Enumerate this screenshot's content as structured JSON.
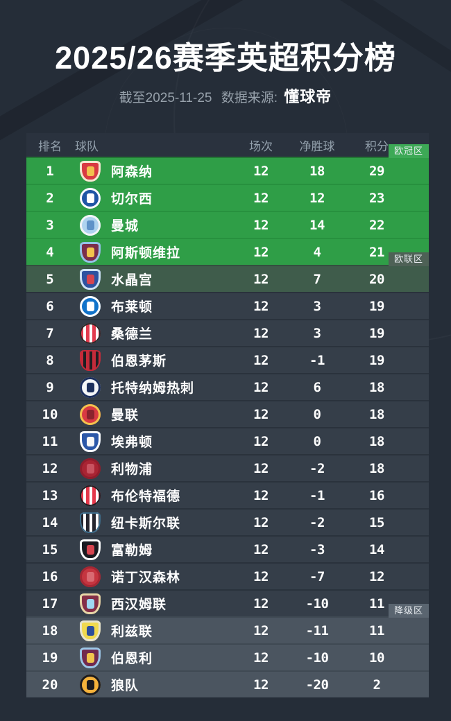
{
  "header": {
    "title": "2025/26赛季英超积分榜",
    "asof": "截至2025-11-25",
    "source_label": "数据来源:",
    "source": "懂球帝"
  },
  "colors": {
    "page_bg": "#252d38",
    "header_row_bg": "#2a323e",
    "header_text": "#93a0ac",
    "subtitle_text": "#97a1ab",
    "ucl_row": "#2f9e47",
    "ucl_separator": "#27913e",
    "uel_row": "#3f5c4b",
    "mid_row": "#353e49",
    "mid_separator": "#2a323c",
    "relegation_row": "#4b5560",
    "relegation_separator": "#3f4953",
    "text_white": "#ffffff"
  },
  "table": {
    "columns": {
      "rank": "排名",
      "team": "球队",
      "played": "场次",
      "gd": "净胜球",
      "points": "积分"
    },
    "zones": {
      "ucl": {
        "label": "欧冠区",
        "color": "#3da956"
      },
      "uel": {
        "label": "欧联区",
        "color": "#4e6156"
      },
      "relegation": {
        "label": "降级区",
        "color": "#5a6570"
      }
    },
    "rows": [
      {
        "rank": 1,
        "team": "阿森纳",
        "played": 12,
        "gd": 18,
        "points": 29,
        "zone": "ucl",
        "tag": "ucl",
        "logo": {
          "type": "shield",
          "c1": "#d93a42",
          "c2": "#f3e9d2",
          "c3": "#f2c14e"
        }
      },
      {
        "rank": 2,
        "team": "切尔西",
        "played": 12,
        "gd": 12,
        "points": 23,
        "zone": "ucl",
        "logo": {
          "type": "circle",
          "c1": "#1f55a5",
          "c2": "#ffffff",
          "c3": "#ffffff"
        }
      },
      {
        "rank": 3,
        "team": "曼城",
        "played": 12,
        "gd": 14,
        "points": 22,
        "zone": "ucl",
        "logo": {
          "type": "circle",
          "c1": "#aed3ef",
          "c2": "#f2f5f7",
          "c3": "#5e92c8"
        }
      },
      {
        "rank": 4,
        "team": "阿斯顿维拉",
        "played": 12,
        "gd": 4,
        "points": 21,
        "zone": "ucl",
        "logo": {
          "type": "shield",
          "c1": "#7b2d4b",
          "c2": "#95c3e8",
          "c3": "#f1c54d"
        }
      },
      {
        "rank": 5,
        "team": "水晶宫",
        "played": 12,
        "gd": 7,
        "points": 20,
        "zone": "uel",
        "tag": "uel",
        "logo": {
          "type": "shield",
          "c1": "#2d52a0",
          "c2": "#cfe3f5",
          "c3": "#d64550"
        }
      },
      {
        "rank": 6,
        "team": "布莱顿",
        "played": 12,
        "gd": 3,
        "points": 19,
        "zone": "mid",
        "logo": {
          "type": "circle",
          "c1": "#1173ca",
          "c2": "#ffffff",
          "c3": "#ffffff"
        }
      },
      {
        "rank": 7,
        "team": "桑德兰",
        "played": 12,
        "gd": 3,
        "points": 19,
        "zone": "mid",
        "logo": {
          "type": "stripes-circle",
          "c1": "#e23b4e",
          "c2": "#ffffff",
          "c3": "#2a2a2a"
        }
      },
      {
        "rank": 8,
        "team": "伯恩茅斯",
        "played": 12,
        "gd": -1,
        "points": 19,
        "zone": "mid",
        "logo": {
          "type": "stripes-shield",
          "c1": "#c42b3a",
          "c2": "#1e1e22",
          "c3": "#c42b3a"
        }
      },
      {
        "rank": 9,
        "team": "托特纳姆热刺",
        "played": 12,
        "gd": 6,
        "points": 18,
        "zone": "mid",
        "logo": {
          "type": "circle",
          "c1": "#f4f6f8",
          "c2": "#1c2f5c",
          "c3": "#1c2f5c"
        }
      },
      {
        "rank": 10,
        "team": "曼联",
        "played": 12,
        "gd": 0,
        "points": 18,
        "zone": "mid",
        "logo": {
          "type": "circle",
          "c1": "#d93a42",
          "c2": "#f2c24e",
          "c3": "#8a232d"
        }
      },
      {
        "rank": 11,
        "team": "埃弗顿",
        "played": 12,
        "gd": 0,
        "points": 18,
        "zone": "mid",
        "logo": {
          "type": "shield",
          "c1": "#2b57a8",
          "c2": "#ffffff",
          "c3": "#f7f7f7"
        }
      },
      {
        "rank": 12,
        "team": "利物浦",
        "played": 12,
        "gd": -2,
        "points": 18,
        "zone": "mid",
        "logo": {
          "type": "circle",
          "c1": "#a92433",
          "c2": "#8f1d2c",
          "c3": "#c95360"
        }
      },
      {
        "rank": 13,
        "team": "布伦特福德",
        "played": 12,
        "gd": -1,
        "points": 16,
        "zone": "mid",
        "logo": {
          "type": "stripes-circle",
          "c1": "#e4374a",
          "c2": "#ffffff",
          "c3": "#1e1e22"
        }
      },
      {
        "rank": 14,
        "team": "纽卡斯尔联",
        "played": 12,
        "gd": -2,
        "points": 15,
        "zone": "mid",
        "logo": {
          "type": "stripes-shield",
          "c1": "#26262e",
          "c2": "#ffffff",
          "c3": "#3f6e8c"
        }
      },
      {
        "rank": 15,
        "team": "富勒姆",
        "played": 12,
        "gd": -3,
        "points": 14,
        "zone": "mid",
        "logo": {
          "type": "shield",
          "c1": "#1a1a20",
          "c2": "#ffffff",
          "c3": "#d64550"
        }
      },
      {
        "rank": 16,
        "team": "诺丁汉森林",
        "played": 12,
        "gd": -7,
        "points": 12,
        "zone": "mid",
        "logo": {
          "type": "circle",
          "c1": "#c53540",
          "c2": "#a52733",
          "c3": "#d96a72"
        }
      },
      {
        "rank": 17,
        "team": "西汉姆联",
        "played": 12,
        "gd": -10,
        "points": 11,
        "zone": "mid",
        "logo": {
          "type": "shield",
          "c1": "#842f47",
          "c2": "#e8d8a8",
          "c3": "#9fd9f2"
        }
      },
      {
        "rank": 18,
        "team": "利兹联",
        "played": 12,
        "gd": -11,
        "points": 11,
        "zone": "relegation",
        "tag": "relegation",
        "logo": {
          "type": "shield",
          "c1": "#f0d94e",
          "c2": "#e8e4d0",
          "c3": "#2b4d9b"
        }
      },
      {
        "rank": 19,
        "team": "伯恩利",
        "played": 12,
        "gd": -10,
        "points": 10,
        "zone": "relegation",
        "logo": {
          "type": "shield",
          "c1": "#722a4e",
          "c2": "#9cc8e8",
          "c3": "#f1c54d"
        }
      },
      {
        "rank": 20,
        "team": "狼队",
        "played": 12,
        "gd": -20,
        "points": 2,
        "zone": "relegation",
        "logo": {
          "type": "circle",
          "c1": "#f5b23b",
          "c2": "#1a1a1e",
          "c3": "#1a1a1e"
        }
      }
    ]
  },
  "chart_data": {
    "type": "table",
    "title": "2025/26赛季英超积分榜",
    "subtitle": "截至2025-11-25 数据来源:懂球帝",
    "columns": [
      "排名",
      "球队",
      "场次",
      "净胜球",
      "积分"
    ],
    "zone_annotations": [
      "欧冠区 (rows 1-4)",
      "欧联区 (row 5)",
      "降级区 (rows 18-20)"
    ],
    "rows": [
      [
        1,
        "阿森纳",
        12,
        18,
        29
      ],
      [
        2,
        "切尔西",
        12,
        12,
        23
      ],
      [
        3,
        "曼城",
        12,
        14,
        22
      ],
      [
        4,
        "阿斯顿维拉",
        12,
        4,
        21
      ],
      [
        5,
        "水晶宫",
        12,
        7,
        20
      ],
      [
        6,
        "布莱顿",
        12,
        3,
        19
      ],
      [
        7,
        "桑德兰",
        12,
        3,
        19
      ],
      [
        8,
        "伯恩茅斯",
        12,
        -1,
        19
      ],
      [
        9,
        "托特纳姆热刺",
        12,
        6,
        18
      ],
      [
        10,
        "曼联",
        12,
        0,
        18
      ],
      [
        11,
        "埃弗顿",
        12,
        0,
        18
      ],
      [
        12,
        "利物浦",
        12,
        -2,
        18
      ],
      [
        13,
        "布伦特福德",
        12,
        -1,
        16
      ],
      [
        14,
        "纽卡斯尔联",
        12,
        -2,
        15
      ],
      [
        15,
        "富勒姆",
        12,
        -3,
        14
      ],
      [
        16,
        "诺丁汉森林",
        12,
        -7,
        12
      ],
      [
        17,
        "西汉姆联",
        12,
        -10,
        11
      ],
      [
        18,
        "利兹联",
        12,
        -11,
        11
      ],
      [
        19,
        "伯恩利",
        12,
        -10,
        10
      ],
      [
        20,
        "狼队",
        12,
        -20,
        2
      ]
    ]
  }
}
